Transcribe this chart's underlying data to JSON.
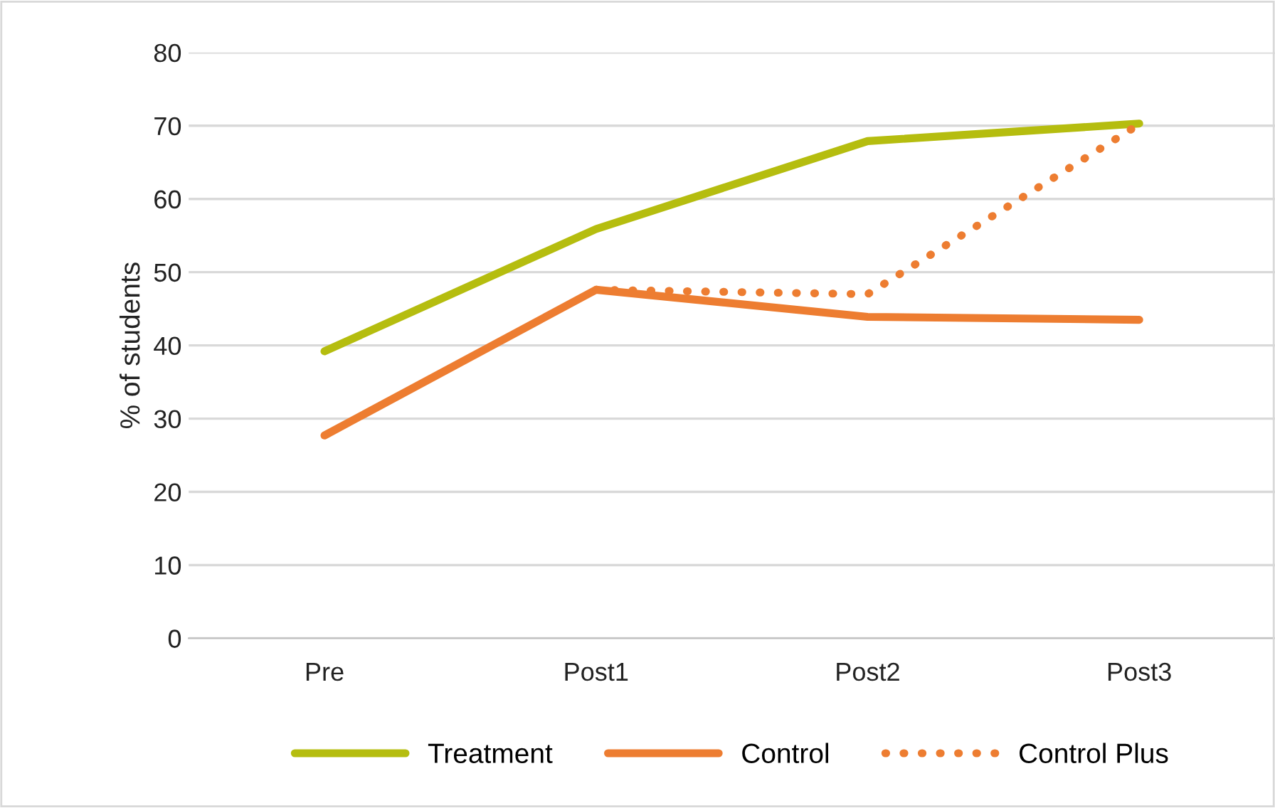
{
  "chart_data": {
    "type": "line",
    "ylabel": "% of students",
    "categories": [
      "Pre",
      "Post1",
      "Post2",
      "Post3"
    ],
    "series": [
      {
        "name": "Treatment",
        "color": "#b5bd0f",
        "values": [
          39.2,
          55.9,
          67.9,
          70.3
        ]
      },
      {
        "name": "Control",
        "color": "#ed7d31",
        "values": [
          27.7,
          47.6,
          43.9,
          43.5
        ]
      },
      {
        "name": "Control Plus",
        "color": "#ed7d31",
        "values": [
          null,
          47.6,
          47.0,
          70.2
        ],
        "line_style": "dotted"
      }
    ],
    "ylim": [
      0,
      80
    ],
    "yticks": [
      0,
      10,
      20,
      30,
      40,
      50,
      60,
      70,
      80
    ],
    "grid": "y",
    "legend": "bottom",
    "marker": "none",
    "line_style": "solid"
  }
}
